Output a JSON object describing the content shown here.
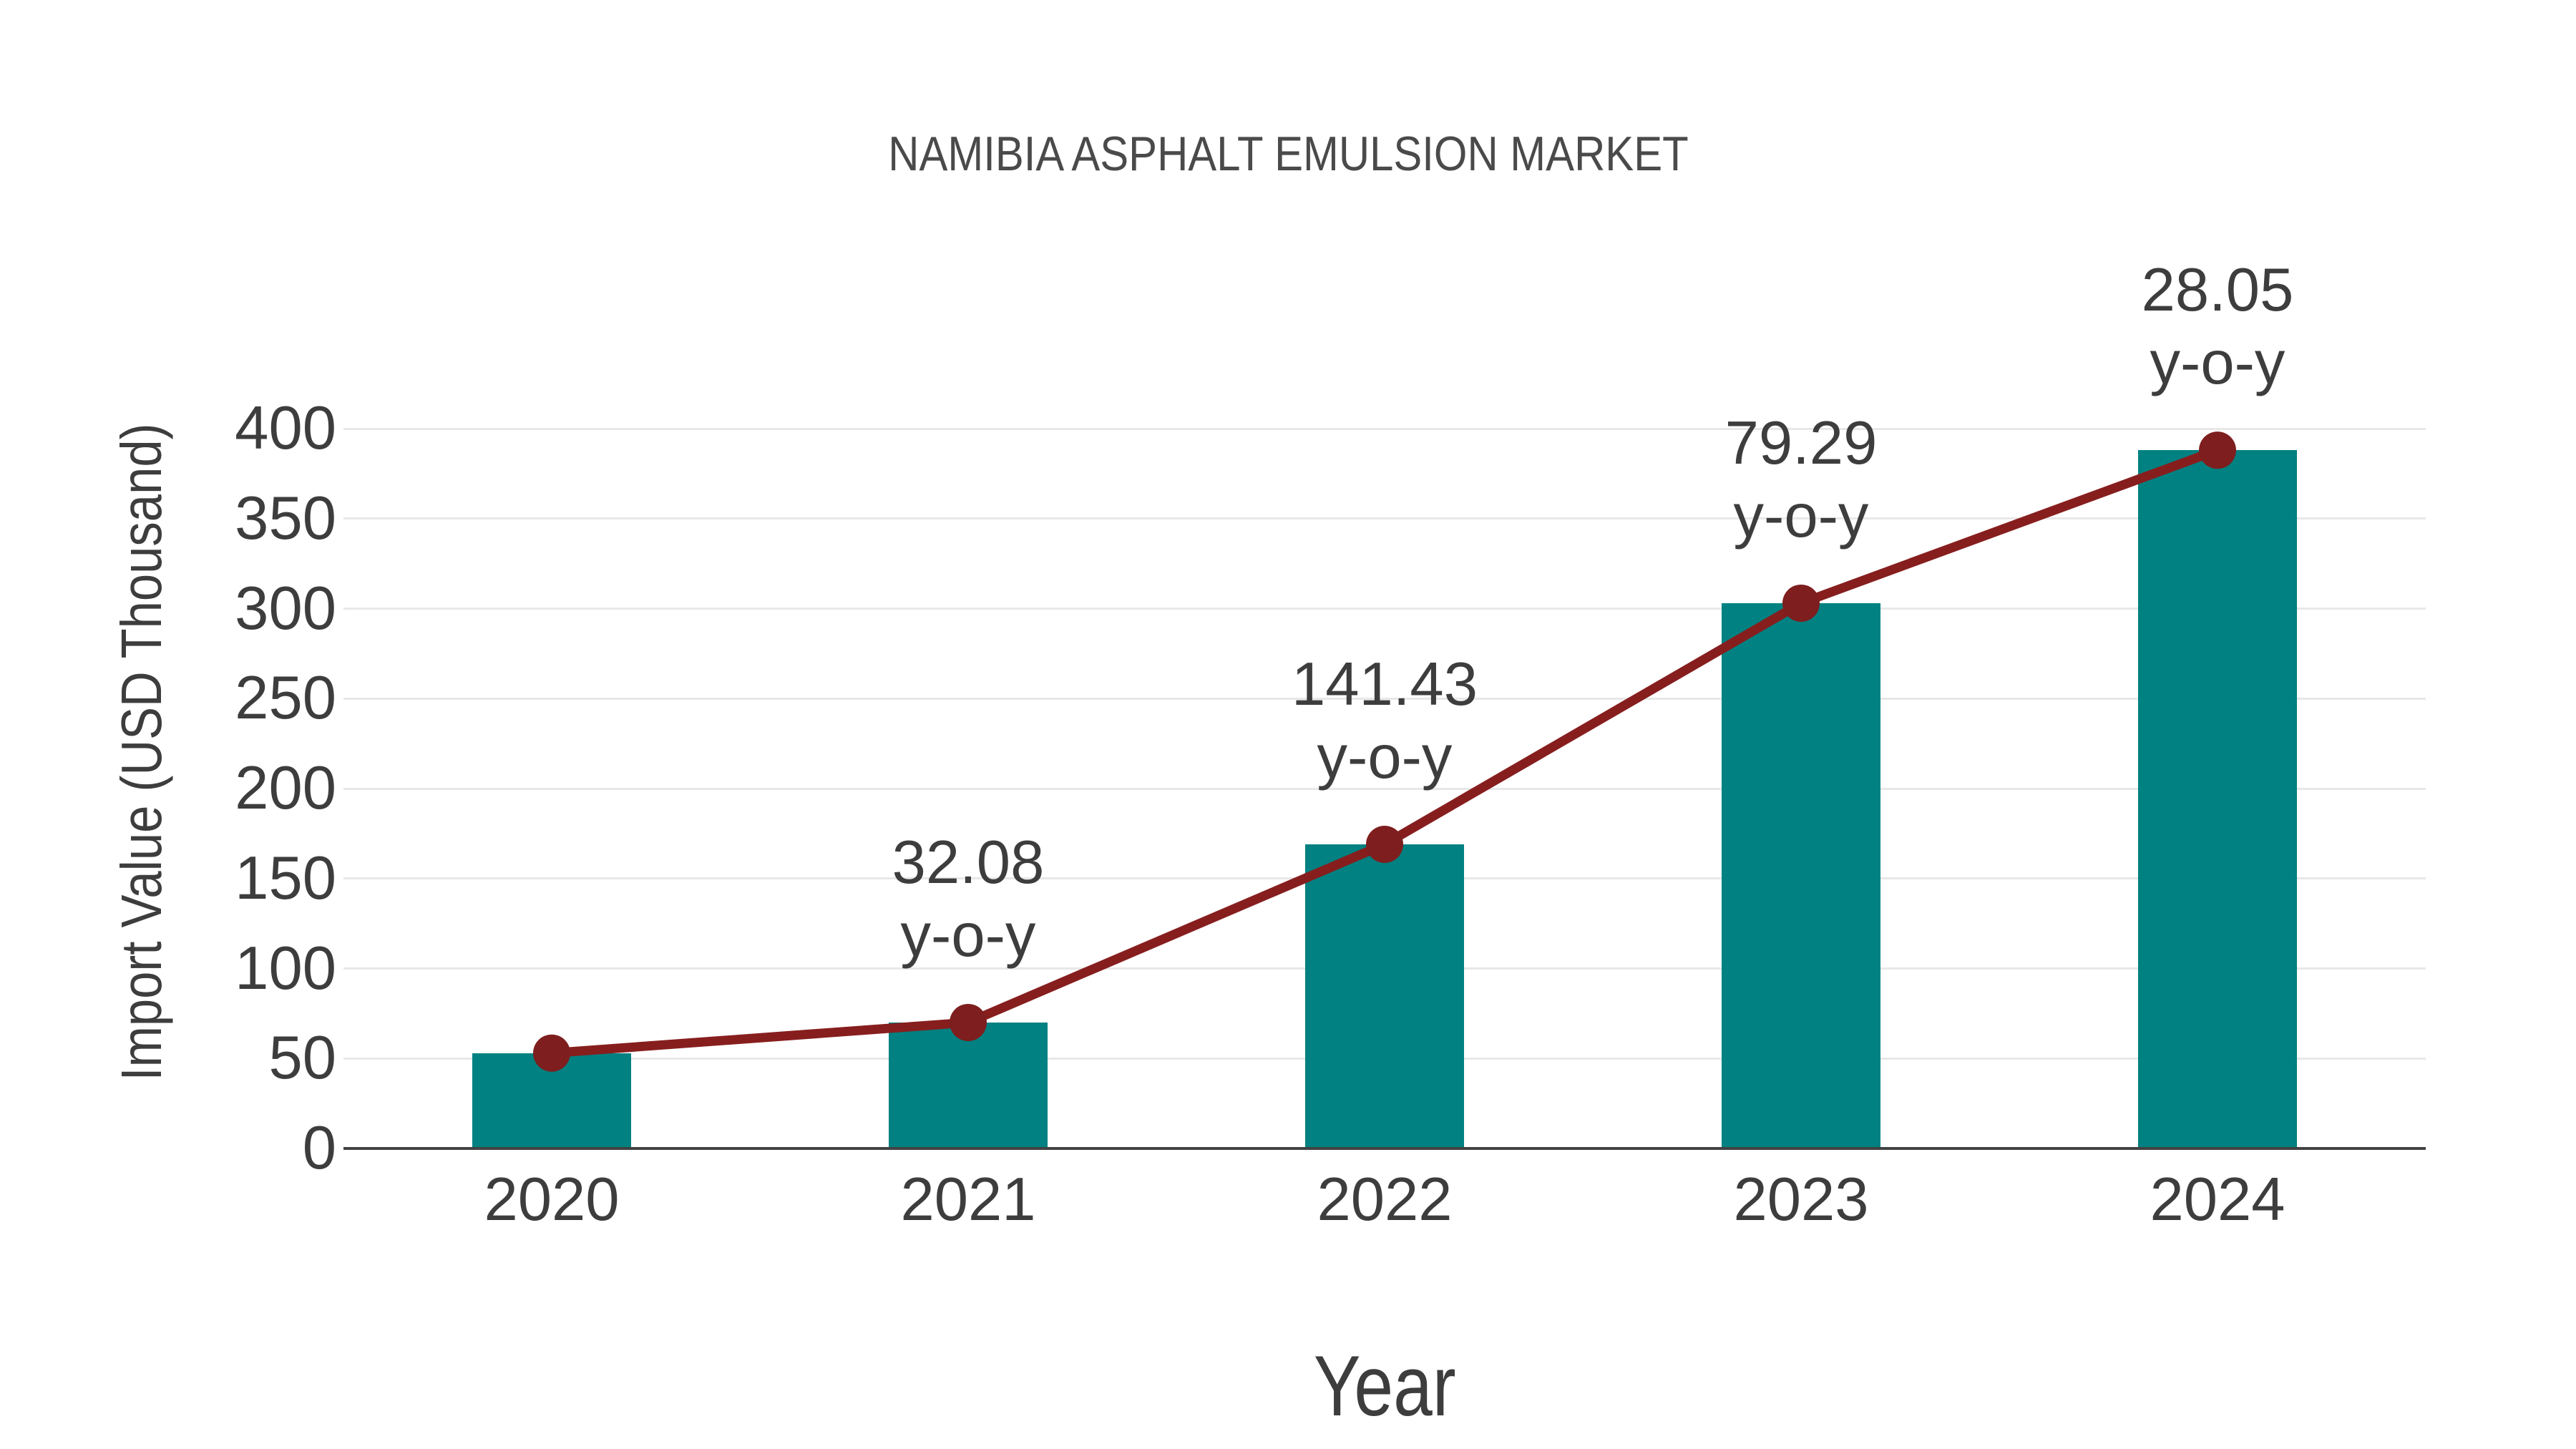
{
  "chart_data": {
    "type": "combo-bar-line",
    "title": "NAMIBIA ASPHALT EMULSION MARKET",
    "xlabel": "Year",
    "ylabel": "Import Value (USD Thousand)",
    "categories": [
      "2020",
      "2021",
      "2022",
      "2023",
      "2024"
    ],
    "series": [
      {
        "name": "Import Value (USD Thousand)",
        "type": "bar",
        "values": [
          53,
          70,
          169,
          303,
          388
        ]
      },
      {
        "name": "y-o-y growth line",
        "type": "line",
        "values": [
          53,
          70,
          169,
          303,
          388
        ]
      }
    ],
    "point_labels": [
      null,
      "32.08",
      "141.43",
      "79.29",
      "28.05"
    ],
    "point_label_suffix": "y-o-y",
    "ylim": [
      0,
      400
    ],
    "yticks": [
      0,
      50,
      100,
      150,
      200,
      250,
      300,
      350,
      400
    ],
    "grid": true,
    "legend": "none",
    "colors": {
      "bar": "#018181",
      "line": "#871e1e",
      "marker": "#7e1e1e",
      "text": "#3d3d3d",
      "title_text": "#4a4a4a",
      "gridline": "#e8e8e8",
      "axis_line": "#424242",
      "background": "#ffffff"
    }
  }
}
